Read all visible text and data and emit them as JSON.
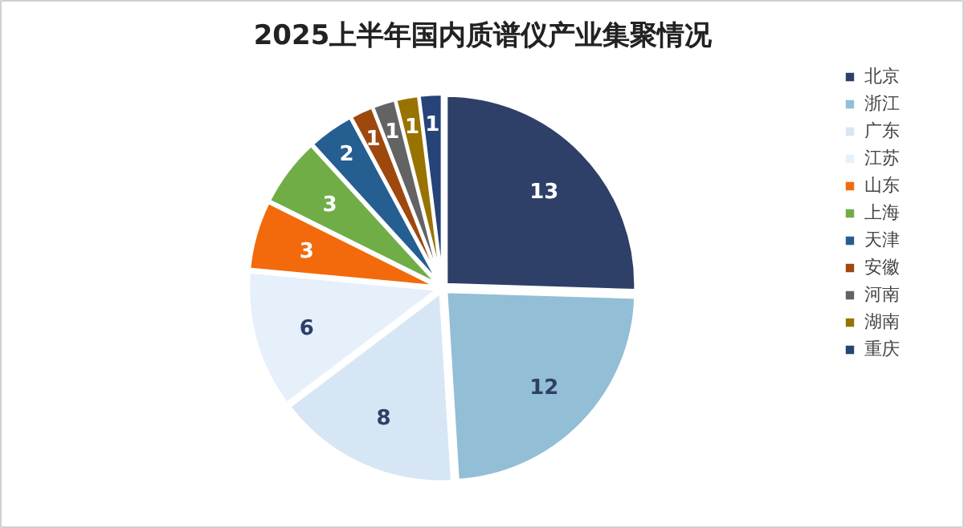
{
  "chart_data": {
    "type": "pie",
    "title": "2025上半年国内质谱仪产业集聚情况",
    "categories": [
      "北京",
      "浙江",
      "广东",
      "江苏",
      "山东",
      "上海",
      "天津",
      "安徽",
      "河南",
      "湖南",
      "重庆"
    ],
    "values": [
      13,
      12,
      8,
      6,
      3,
      3,
      2,
      1,
      1,
      1,
      1
    ],
    "colors": [
      "#2e4068",
      "#92bed6",
      "#d6e6f4",
      "#e6f0fa",
      "#f26a0c",
      "#70ad47",
      "#255e91",
      "#9e480e",
      "#636363",
      "#997300",
      "#264478"
    ],
    "data_labels": true,
    "legend": "right"
  }
}
